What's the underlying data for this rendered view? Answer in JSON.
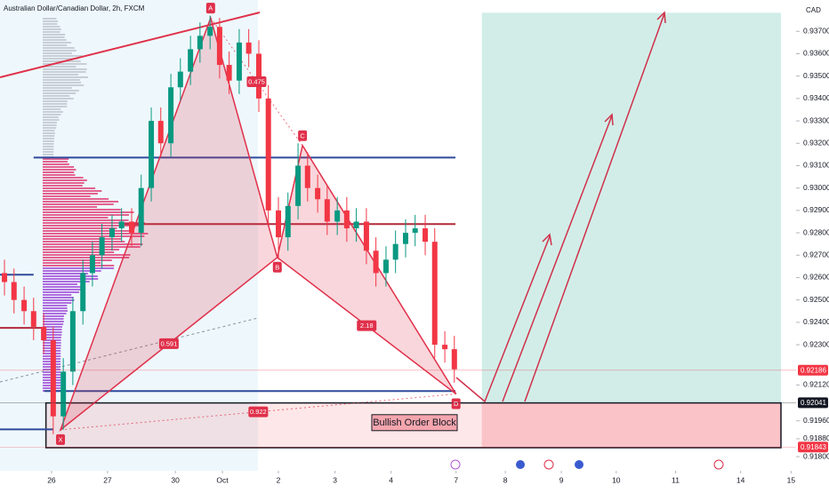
{
  "chart_data": {
    "type": "candlestick",
    "title": "Australian Dollar/Canadian Dollar, 2h, FXCM",
    "currency": "CAD",
    "xlim": [
      -0.92,
      13.29
    ],
    "ylim": [
      0.9174,
      0.9384
    ],
    "yticks": [
      {
        "value": 0.937,
        "label": "0.93700"
      },
      {
        "value": 0.936,
        "label": "0.93600"
      },
      {
        "value": 0.935,
        "label": "0.93500"
      },
      {
        "value": 0.934,
        "label": "0.93400"
      },
      {
        "value": 0.933,
        "label": "0.93300"
      },
      {
        "value": 0.932,
        "label": "0.93200"
      },
      {
        "value": 0.931,
        "label": "0.93100"
      },
      {
        "value": 0.93,
        "label": "0.93000"
      },
      {
        "value": 0.929,
        "label": "0.92900"
      },
      {
        "value": 0.928,
        "label": "0.92800"
      },
      {
        "value": 0.927,
        "label": "0.92700"
      },
      {
        "value": 0.926,
        "label": "0.92600"
      },
      {
        "value": 0.925,
        "label": "0.92500"
      },
      {
        "value": 0.924,
        "label": "0.92400"
      },
      {
        "value": 0.923,
        "label": "0.92300"
      },
      {
        "value": 0.9212,
        "label": "0.92120"
      },
      {
        "value": 0.9196,
        "label": "0.91960"
      },
      {
        "value": 0.9188,
        "label": "0.91880"
      },
      {
        "value": 0.918,
        "label": "0.91800"
      }
    ],
    "xticks": [
      {
        "value": 0,
        "label": "26"
      },
      {
        "value": 1,
        "label": "27"
      },
      {
        "value": 2.21,
        "label": "30"
      },
      {
        "value": 3.05,
        "label": "Oct"
      },
      {
        "value": 4.05,
        "label": "2"
      },
      {
        "value": 5.06,
        "label": "3"
      },
      {
        "value": 6.06,
        "label": "4"
      },
      {
        "value": 7.22,
        "label": "7"
      },
      {
        "value": 8.1,
        "label": "8"
      },
      {
        "value": 9.1,
        "label": "9"
      },
      {
        "value": 10.08,
        "label": "10"
      },
      {
        "value": 11.14,
        "label": "11"
      },
      {
        "value": 12.3,
        "label": "14"
      },
      {
        "value": 13.2,
        "label": "15"
      }
    ],
    "up_color": "#089981",
    "down_color": "#f23645",
    "x": [
      -0.84,
      -0.67,
      -0.49,
      -0.32,
      -0.14,
      0.03,
      0.21,
      0.38,
      0.56,
      0.73,
      0.9,
      1.08,
      1.25,
      1.43,
      1.6,
      1.78,
      1.95,
      2.13,
      2.3,
      2.48,
      2.65,
      2.83,
      3.0,
      3.17,
      3.35,
      3.52,
      3.7,
      3.87,
      4.05,
      4.22,
      4.4,
      4.57,
      4.75,
      4.92,
      5.1,
      5.27,
      5.44,
      5.62,
      5.79,
      5.97,
      6.14,
      6.32,
      6.49,
      6.67,
      6.84,
      7.02,
      7.19
    ],
    "open": [
      0.9262,
      0.9258,
      0.925,
      0.9245,
      0.9238,
      0.9232,
      0.9198,
      0.9218,
      0.9245,
      0.9262,
      0.927,
      0.9278,
      0.9282,
      0.9285,
      0.928,
      0.93,
      0.933,
      0.932,
      0.9345,
      0.9352,
      0.9362,
      0.9368,
      0.9372,
      0.9355,
      0.9348,
      0.9365,
      0.936,
      0.934,
      0.929,
      0.9278,
      0.9292,
      0.931,
      0.93,
      0.9295,
      0.9285,
      0.929,
      0.9282,
      0.9285,
      0.9272,
      0.9262,
      0.9268,
      0.9275,
      0.928,
      0.9282,
      0.9276,
      0.923,
      0.9228
    ],
    "high": [
      0.9268,
      0.9264,
      0.9256,
      0.9251,
      0.9244,
      0.9238,
      0.9224,
      0.9251,
      0.9268,
      0.9276,
      0.9284,
      0.9288,
      0.9291,
      0.9291,
      0.9306,
      0.9336,
      0.9336,
      0.9351,
      0.9358,
      0.9368,
      0.9374,
      0.9377,
      0.9376,
      0.9361,
      0.9371,
      0.9371,
      0.9366,
      0.9346,
      0.9296,
      0.9298,
      0.932,
      0.9316,
      0.9306,
      0.9301,
      0.9296,
      0.9296,
      0.9291,
      0.9291,
      0.9278,
      0.9274,
      0.9281,
      0.9286,
      0.9288,
      0.9288,
      0.9282,
      0.9236,
      0.9234
    ],
    "low": [
      0.9252,
      0.9244,
      0.9239,
      0.9232,
      0.9226,
      0.919,
      0.9192,
      0.9212,
      0.9239,
      0.9256,
      0.9264,
      0.9272,
      0.9276,
      0.9274,
      0.9274,
      0.9294,
      0.9314,
      0.9314,
      0.9339,
      0.9346,
      0.9356,
      0.9362,
      0.9349,
      0.9342,
      0.9342,
      0.9354,
      0.9334,
      0.9284,
      0.9268,
      0.9272,
      0.9286,
      0.9294,
      0.9289,
      0.9279,
      0.9279,
      0.9276,
      0.9276,
      0.9266,
      0.9256,
      0.9256,
      0.9262,
      0.9269,
      0.9274,
      0.927,
      0.9224,
      0.9222,
      0.9213
    ],
    "close": [
      0.9258,
      0.925,
      0.9245,
      0.9238,
      0.9232,
      0.9198,
      0.9218,
      0.9245,
      0.9262,
      0.927,
      0.9278,
      0.9282,
      0.9285,
      0.928,
      0.93,
      0.933,
      0.932,
      0.9345,
      0.9352,
      0.9362,
      0.9368,
      0.9372,
      0.9355,
      0.9348,
      0.9365,
      0.936,
      0.934,
      0.929,
      0.9278,
      0.9292,
      0.931,
      0.93,
      0.9295,
      0.9285,
      0.929,
      0.9282,
      0.9285,
      0.9272,
      0.9262,
      0.9268,
      0.9275,
      0.928,
      0.9282,
      0.9276,
      0.923,
      0.9228,
      0.9219
    ],
    "levels": [
      {
        "value": 0.93136,
        "x": [
          -0.32,
          7.21
        ],
        "color": "#2f4a9a"
      },
      {
        "value": 0.92839,
        "x": [
          1.3,
          7.21
        ],
        "color": "#b2283a"
      },
      {
        "value": 0.92093,
        "x": [
          -0.13,
          7.21
        ],
        "color": "#2f4a9a"
      },
      {
        "value": 0.92613,
        "x": [
          -0.92,
          -0.32
        ],
        "color": "#2f4a9a"
      },
      {
        "value": 0.92375,
        "x": [
          -0.92,
          -0.16
        ],
        "color": "#b2283a"
      },
      {
        "value": 0.91922,
        "x": [
          -0.92,
          0.03
        ],
        "color": "#2f4a9a"
      }
    ],
    "pattern": {
      "color": "#e0304a",
      "points": [
        {
          "label": "X",
          "x": 0.16,
          "y": 0.9192
        },
        {
          "label": "A",
          "x": 2.84,
          "y": 0.9376
        },
        {
          "label": "B",
          "x": 4.03,
          "y": 0.9269
        },
        {
          "label": "C",
          "x": 4.48,
          "y": 0.9319
        },
        {
          "label": "D",
          "x": 7.22,
          "y": 0.9208
        }
      ],
      "ratios": [
        "0.591",
        "0.475",
        "2.18",
        "0.922"
      ]
    },
    "order_block": {
      "label": "Bullish Order Block",
      "top": 0.9204,
      "bottom": 0.9184,
      "x": [
        -0.1,
        13.02
      ]
    },
    "position": {
      "target": 0.93783,
      "entry": 0.92041,
      "stop": 0.91843,
      "x": [
        7.68,
        13.02
      ]
    },
    "price_tags": [
      {
        "value": 0.92186,
        "color": "#f23645"
      },
      {
        "value": 0.92041,
        "color": "#131722"
      },
      {
        "value": 0.91843,
        "color": "#f23645"
      }
    ]
  }
}
